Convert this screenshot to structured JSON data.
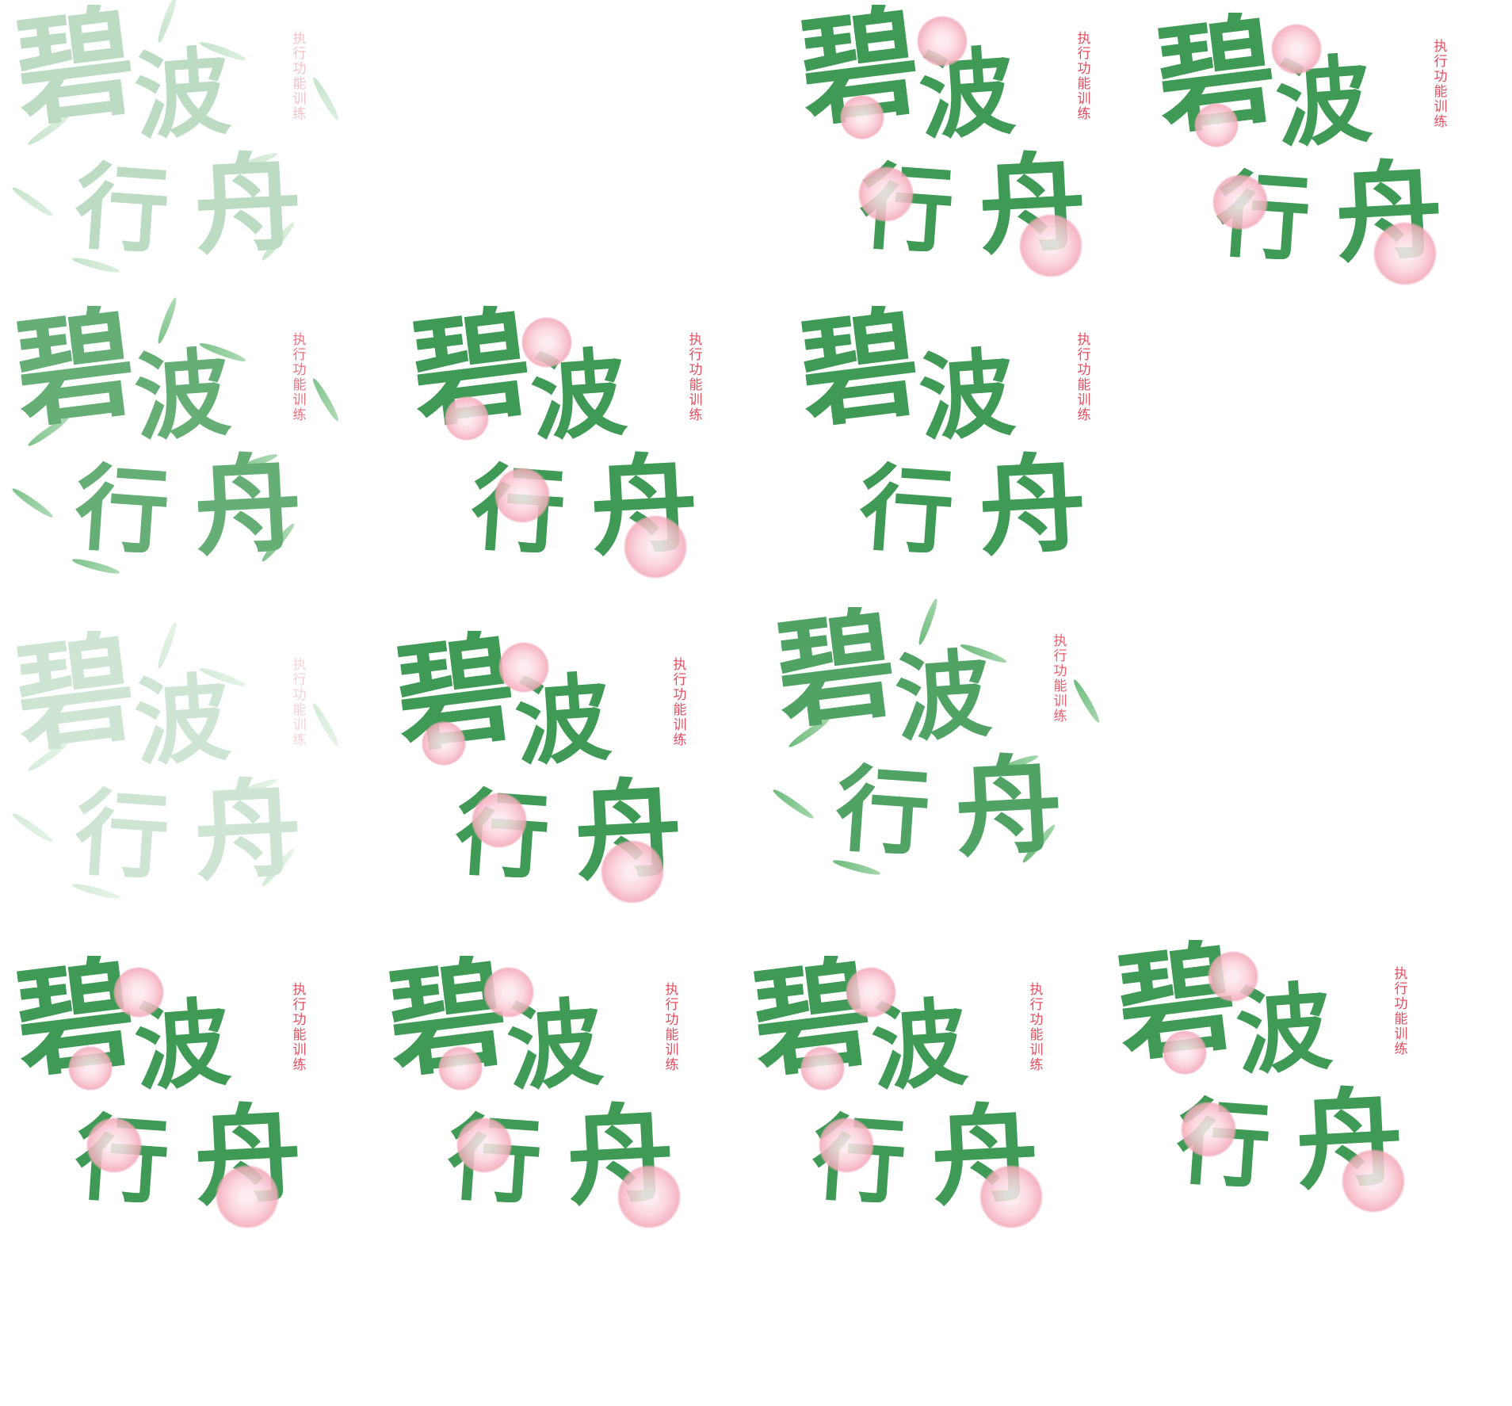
{
  "sprite_sheet": {
    "title_chars": [
      "碧",
      "波",
      "行",
      "舟"
    ],
    "caption": "执行功能训练",
    "colors": {
      "title_green": "#3f9a55",
      "leaf_green": "#5fb56f",
      "blossom_pink": "#f3a9b9",
      "caption_red": "#e64d5e",
      "background": "#ffffff"
    },
    "frames": [
      {
        "name": "frame-1",
        "opacity": 0.35,
        "ornament": "bamboo-leaves"
      },
      {
        "name": "frame-2",
        "opacity": 1.0,
        "ornament": "blossoms"
      },
      {
        "name": "frame-3",
        "opacity": 1.0,
        "ornament": "blossoms"
      },
      {
        "name": "frame-4",
        "opacity": 0.8,
        "ornament": "bamboo-leaves"
      },
      {
        "name": "frame-5",
        "opacity": 1.0,
        "ornament": "blossoms"
      },
      {
        "name": "frame-6",
        "opacity": 1.0,
        "ornament": "none"
      },
      {
        "name": "frame-7",
        "opacity": 0.25,
        "ornament": "bamboo-leaves"
      },
      {
        "name": "frame-8",
        "opacity": 1.0,
        "ornament": "blossoms"
      },
      {
        "name": "frame-9",
        "opacity": 0.9,
        "ornament": "bamboo-leaves"
      },
      {
        "name": "frame-10",
        "opacity": 1.0,
        "ornament": "blossoms"
      },
      {
        "name": "frame-11",
        "opacity": 1.0,
        "ornament": "blossoms"
      },
      {
        "name": "frame-12",
        "opacity": 1.0,
        "ornament": "blossoms"
      },
      {
        "name": "frame-13",
        "opacity": 1.0,
        "ornament": "blossoms"
      }
    ]
  }
}
